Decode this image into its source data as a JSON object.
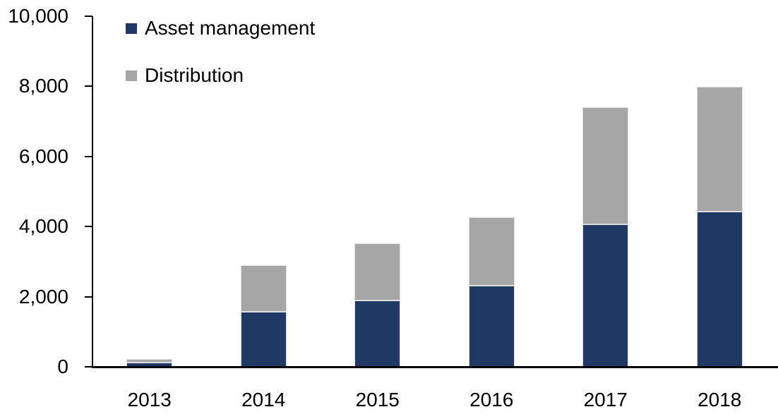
{
  "chart_data": {
    "type": "bar",
    "stacked": true,
    "title": "",
    "xlabel": "",
    "ylabel": "",
    "categories": [
      "2013",
      "2014",
      "2015",
      "2016",
      "2017",
      "2018"
    ],
    "series": [
      {
        "name": "Asset management",
        "color": "#1F3864",
        "values": [
          120,
          1560,
          1900,
          2320,
          4070,
          4430
        ]
      },
      {
        "name": "Distribution",
        "color": "#A6A6A6",
        "values": [
          100,
          1330,
          1630,
          1950,
          3330,
          3570
        ]
      }
    ],
    "totals": [
      220,
      2890,
      3530,
      4270,
      7400,
      8000
    ],
    "ylim": [
      0,
      10000
    ],
    "ytick_interval": 2000,
    "ytick_labels": [
      "0",
      "2,000",
      "4,000",
      "6,000",
      "8,000",
      "10,000"
    ],
    "grid": false,
    "legend_position": "top-left-inside",
    "axis_color": "#000000",
    "background_color": "#FFFFFF"
  }
}
